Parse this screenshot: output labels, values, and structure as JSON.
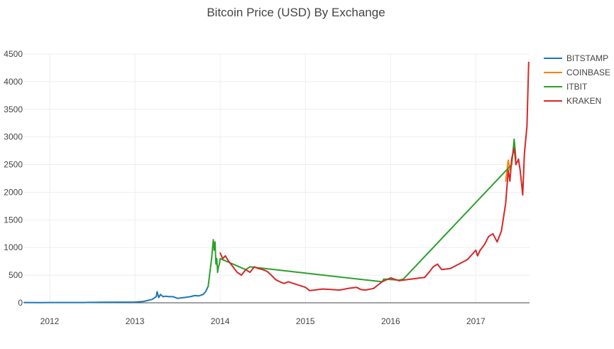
{
  "chart_data": {
    "type": "line",
    "title": "Bitcoin Price (USD) By Exchange",
    "xlabel": "",
    "ylabel": "",
    "xlim": [
      2011.7,
      2017.63
    ],
    "ylim": [
      0,
      4500
    ],
    "x_ticks": [
      2012,
      2013,
      2014,
      2015,
      2016,
      2017
    ],
    "x_tick_labels": [
      "2012",
      "2013",
      "2014",
      "2015",
      "2016",
      "2017"
    ],
    "y_ticks": [
      0,
      500,
      1000,
      1500,
      2000,
      2500,
      3000,
      3500,
      4000,
      4500
    ],
    "y_tick_labels": [
      "0",
      "500",
      "1000",
      "1500",
      "2000",
      "2500",
      "3000",
      "3500",
      "4000",
      "4500"
    ],
    "grid": true,
    "legend_position": "top-right",
    "series": [
      {
        "name": "BITSTAMP",
        "color": "#1f77b4",
        "x": [
          2011.7,
          2011.9,
          2012.0,
          2012.2,
          2012.4,
          2012.6,
          2012.8,
          2013.0,
          2013.1,
          2013.2,
          2013.25,
          2013.26,
          2013.28,
          2013.3,
          2013.33,
          2013.36,
          2013.4,
          2013.45,
          2013.5,
          2013.55,
          2013.6,
          2013.65,
          2013.7,
          2013.75,
          2013.8,
          2013.83,
          2013.86
        ],
        "y": [
          5,
          3,
          5,
          5,
          5,
          10,
          12,
          13,
          25,
          60,
          110,
          200,
          95,
          150,
          110,
          120,
          110,
          110,
          80,
          90,
          100,
          110,
          130,
          125,
          150,
          200,
          300
        ]
      },
      {
        "name": "COINBASE",
        "color": "#ff7f0e",
        "x": [
          2017.35,
          2017.38,
          2017.4,
          2017.42
        ],
        "y": [
          2200,
          2580,
          2400,
          2500
        ]
      },
      {
        "name": "ITBIT",
        "color": "#2ca02c",
        "x": [
          2013.86,
          2013.88,
          2013.9,
          2013.92,
          2013.93,
          2013.94,
          2013.95,
          2013.96,
          2013.97,
          2013.98,
          2013.99,
          2014.0,
          2014.3,
          2014.35,
          2015.9,
          2015.92,
          2016.1,
          2016.15,
          2017.42,
          2017.45,
          2017.47
        ],
        "y": [
          300,
          550,
          800,
          1140,
          950,
          1100,
          700,
          800,
          550,
          650,
          700,
          800,
          600,
          650,
          380,
          430,
          410,
          430,
          2500,
          2960,
          2600
        ]
      },
      {
        "name": "KRAKEN",
        "color": "#d62728",
        "x": [
          2014.0,
          2014.03,
          2014.06,
          2014.1,
          2014.15,
          2014.2,
          2014.25,
          2014.3,
          2014.35,
          2014.4,
          2014.45,
          2014.5,
          2014.55,
          2014.6,
          2014.65,
          2014.7,
          2014.75,
          2014.8,
          2014.9,
          2015.0,
          2015.05,
          2015.1,
          2015.2,
          2015.3,
          2015.4,
          2015.5,
          2015.6,
          2015.65,
          2015.7,
          2015.8,
          2015.85,
          2015.9,
          2016.0,
          2016.1,
          2016.2,
          2016.3,
          2016.4,
          2016.45,
          2016.5,
          2016.55,
          2016.6,
          2016.7,
          2016.8,
          2016.9,
          2017.0,
          2017.02,
          2017.05,
          2017.1,
          2017.15,
          2017.2,
          2017.25,
          2017.3,
          2017.35,
          2017.38,
          2017.4,
          2017.42,
          2017.45,
          2017.47,
          2017.5,
          2017.52,
          2017.55,
          2017.57,
          2017.6,
          2017.62
        ],
        "y": [
          900,
          800,
          850,
          750,
          650,
          550,
          500,
          600,
          550,
          650,
          620,
          600,
          570,
          500,
          420,
          380,
          350,
          380,
          330,
          280,
          220,
          230,
          250,
          240,
          230,
          260,
          280,
          240,
          230,
          260,
          320,
          380,
          450,
          400,
          420,
          440,
          460,
          550,
          650,
          700,
          600,
          620,
          700,
          780,
          950,
          850,
          950,
          1050,
          1200,
          1250,
          1100,
          1300,
          1800,
          2400,
          2200,
          2600,
          2800,
          2500,
          2600,
          2400,
          1950,
          2700,
          3200,
          4350
        ]
      }
    ]
  }
}
